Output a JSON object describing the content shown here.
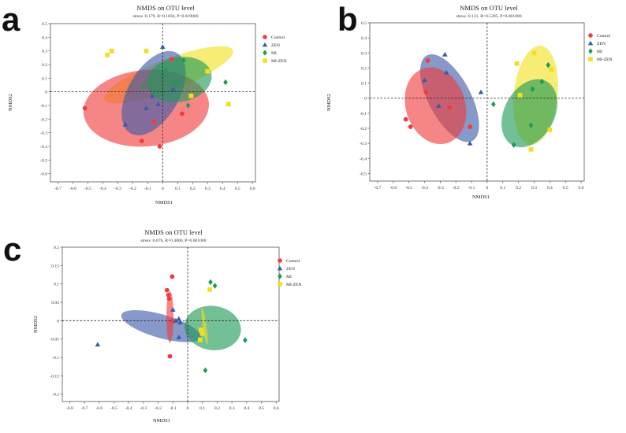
{
  "figure": {
    "panel_labels": [
      "a",
      "b",
      "c"
    ]
  },
  "colors": {
    "Control": "#f03c3c",
    "ZEN": "#3c5aa8",
    "MI": "#1f9a55",
    "MI-ZEN": "#f2e020"
  },
  "chart_data": [
    {
      "id": "a",
      "type": "scatter",
      "title": "NMDS on OTU level",
      "subtitle": "stress :0.179, R=0.1836, P=0.019000",
      "xlabel": "NMDS1",
      "ylabel": "NMDS2",
      "xlim": [
        -0.75,
        0.62
      ],
      "ylim": [
        -0.66,
        0.5
      ],
      "xticks": [
        "-0.7",
        "-0.6",
        "-0.5",
        "-0.4",
        "-0.3",
        "-0.2",
        "-0.1",
        "0",
        "0.1",
        "0.2",
        "0.3",
        "0.4",
        "0.5",
        "0.6"
      ],
      "yticks": [
        "-0.6",
        "-0.5",
        "-0.4",
        "-0.3",
        "-0.2",
        "-0.1",
        "0",
        "0.1",
        "0.2",
        "0.3",
        "0.4",
        "0.5"
      ],
      "legend": [
        "Control",
        "ZEN",
        "MI",
        "MI-ZEN"
      ],
      "series": [
        {
          "name": "Control",
          "marker": "circle",
          "points": [
            [
              -0.52,
              -0.12
            ],
            [
              -0.14,
              -0.36
            ],
            [
              -0.06,
              -0.22
            ],
            [
              -0.02,
              -0.4
            ],
            [
              0.06,
              0.24
            ],
            [
              0.13,
              -0.16
            ]
          ]
        },
        {
          "name": "ZEN",
          "marker": "triangle",
          "points": [
            [
              -0.25,
              -0.24
            ],
            [
              -0.11,
              -0.12
            ],
            [
              -0.07,
              -0.03
            ],
            [
              -0.03,
              -0.09
            ],
            [
              0.0,
              0.33
            ],
            [
              0.07,
              0.02
            ]
          ]
        },
        {
          "name": "MI",
          "marker": "diamond",
          "points": [
            [
              -0.13,
              0.04
            ],
            [
              0.02,
              0.16
            ],
            [
              0.09,
              0.08
            ],
            [
              0.14,
              0.23
            ],
            [
              0.17,
              -0.1
            ],
            [
              0.42,
              0.07
            ]
          ]
        },
        {
          "name": "MI-ZEN",
          "marker": "square",
          "points": [
            [
              -0.37,
              0.27
            ],
            [
              -0.34,
              0.3
            ],
            [
              -0.11,
              0.3
            ],
            [
              0.19,
              -0.03
            ],
            [
              0.3,
              0.15
            ],
            [
              0.44,
              -0.09
            ]
          ]
        }
      ],
      "ellipses": [
        {
          "name": "MI-ZEN",
          "cx": 0.04,
          "cy": 0.125,
          "rx": 0.46,
          "ry": 0.115,
          "angle": -21
        },
        {
          "name": "Control",
          "cx": -0.11,
          "cy": -0.12,
          "rx": 0.42,
          "ry": 0.28,
          "angle": -5
        },
        {
          "name": "ZEN",
          "cx": -0.06,
          "cy": -0.01,
          "rx": 0.17,
          "ry": 0.34,
          "angle": 30
        },
        {
          "name": "MI",
          "cx": 0.11,
          "cy": 0.09,
          "rx": 0.15,
          "ry": 0.24,
          "angle": 80
        }
      ]
    },
    {
      "id": "b",
      "type": "scatter",
      "title": "NMDS on OTU level",
      "subtitle": "stress :0.131, R=0.5295, P=0.001000",
      "xlabel": "NMDS1",
      "ylabel": "NMDS2",
      "xlim": [
        -0.75,
        0.62
      ],
      "ylim": [
        -0.55,
        0.5
      ],
      "xticks": [
        "-0.7",
        "-0.6",
        "-0.5",
        "-0.4",
        "-0.3",
        "-0.2",
        "-0.1",
        "0",
        "0.1",
        "0.2",
        "0.3",
        "0.4",
        "0.5",
        "0.6"
      ],
      "yticks": [
        "-0.5",
        "-0.4",
        "-0.3",
        "-0.2",
        "-0.1",
        "0",
        "0.1",
        "0.2",
        "0.3",
        "0.4",
        "0.5"
      ],
      "legend": [
        "Control",
        "ZEN",
        "MI",
        "MI-ZEN"
      ],
      "series": [
        {
          "name": "Control",
          "marker": "circle",
          "points": [
            [
              -0.52,
              -0.14
            ],
            [
              -0.49,
              -0.19
            ],
            [
              -0.39,
              0.04
            ],
            [
              -0.38,
              0.25
            ],
            [
              -0.24,
              -0.06
            ],
            [
              -0.11,
              -0.19
            ]
          ]
        },
        {
          "name": "ZEN",
          "marker": "triangle",
          "points": [
            [
              -0.4,
              0.12
            ],
            [
              -0.31,
              -0.05
            ],
            [
              -0.27,
              0.29
            ],
            [
              -0.26,
              0.17
            ],
            [
              -0.11,
              -0.3
            ],
            [
              -0.04,
              0.04
            ]
          ]
        },
        {
          "name": "MI",
          "marker": "diamond",
          "points": [
            [
              0.04,
              -0.04
            ],
            [
              0.17,
              -0.31
            ],
            [
              0.28,
              -0.18
            ],
            [
              0.29,
              0.06
            ],
            [
              0.35,
              0.11
            ],
            [
              0.39,
              0.22
            ]
          ]
        },
        {
          "name": "MI-ZEN",
          "marker": "square",
          "points": [
            [
              0.19,
              0.23
            ],
            [
              0.21,
              0.02
            ],
            [
              0.28,
              -0.34
            ],
            [
              0.3,
              0.3
            ],
            [
              0.4,
              -0.21
            ],
            [
              0.41,
              0.19
            ]
          ]
        }
      ],
      "ellipses": [
        {
          "name": "ZEN",
          "cx": -0.24,
          "cy": 0.0,
          "rx": 0.31,
          "ry": 0.14,
          "angle": 62
        },
        {
          "name": "Control",
          "cx": -0.33,
          "cy": -0.05,
          "rx": 0.19,
          "ry": 0.26,
          "angle": -18
        },
        {
          "name": "MI-ZEN",
          "cx": 0.31,
          "cy": 0.02,
          "rx": 0.14,
          "ry": 0.33,
          "angle": 6
        },
        {
          "name": "MI",
          "cx": 0.27,
          "cy": -0.1,
          "rx": 0.16,
          "ry": 0.24,
          "angle": 28
        }
      ]
    },
    {
      "id": "c",
      "type": "scatter",
      "title": "NMDS on OTU level",
      "subtitle": "stress :0.076, R=0.4806, P=0.001000",
      "xlabel": "NMDS1",
      "ylabel": "NMDS2",
      "xlim": [
        -0.85,
        0.62
      ],
      "ylim": [
        -0.22,
        0.2
      ],
      "xticks": [
        "-0.8",
        "-0.7",
        "-0.6",
        "-0.5",
        "-0.4",
        "-0.3",
        "-0.2",
        "-0.1",
        "0",
        "0.1",
        "0.2",
        "0.3",
        "0.4",
        "0.5",
        "0.6"
      ],
      "yticks": [
        "-0.2",
        "-0.15",
        "-0.1",
        "-0.05",
        "0",
        "0.05",
        "0.1",
        "0.15",
        "0.2"
      ],
      "legend": [
        "Control",
        "ZEN",
        "MI",
        "MI-ZEN"
      ],
      "series": [
        {
          "name": "Control",
          "marker": "circle",
          "points": [
            [
              -0.14,
              0.083
            ],
            [
              -0.13,
              0.07
            ],
            [
              -0.125,
              0.06
            ],
            [
              -0.105,
              0.12
            ],
            [
              -0.1,
              -0.002
            ],
            [
              -0.12,
              -0.097
            ]
          ]
        },
        {
          "name": "ZEN",
          "marker": "triangle",
          "points": [
            [
              -0.61,
              -0.065
            ],
            [
              -0.1,
              0.03
            ],
            [
              -0.06,
              0.005
            ],
            [
              -0.05,
              -0.005
            ],
            [
              -0.06,
              -0.045
            ],
            [
              -0.08,
              0.0
            ]
          ]
        },
        {
          "name": "MI",
          "marker": "diamond",
          "points": [
            [
              0.12,
              -0.135
            ],
            [
              0.155,
              0.105
            ],
            [
              0.185,
              0.095
            ],
            [
              0.39,
              -0.053
            ],
            [
              0.1,
              -0.03
            ]
          ]
        },
        {
          "name": "MI-ZEN",
          "marker": "square",
          "points": [
            [
              0.09,
              -0.025
            ],
            [
              0.085,
              -0.052
            ],
            [
              0.1,
              -0.035
            ],
            [
              0.095,
              -0.028
            ],
            [
              0.15,
              0.085
            ]
          ]
        }
      ],
      "ellipses": [
        {
          "name": "ZEN",
          "cx": -0.18,
          "cy": -0.015,
          "rx": 0.28,
          "ry": 0.032,
          "angle": 16
        },
        {
          "name": "Control",
          "cx": -0.12,
          "cy": 0.01,
          "rx": 0.024,
          "ry": 0.07,
          "angle": 0
        },
        {
          "name": "MI",
          "cx": 0.17,
          "cy": -0.02,
          "rx": 0.15,
          "ry": 0.077,
          "angle": -82
        },
        {
          "name": "MI-ZEN",
          "cx": 0.115,
          "cy": -0.015,
          "rx": 0.013,
          "ry": 0.05,
          "angle": -8
        }
      ]
    }
  ]
}
